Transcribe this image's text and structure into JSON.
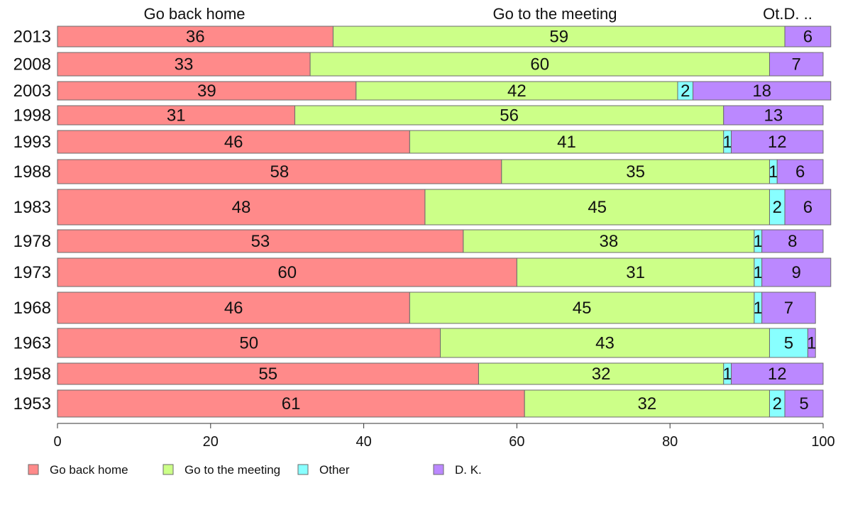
{
  "chart_data": {
    "type": "bar",
    "orientation": "horizontal",
    "stacked": true,
    "header_labels": [
      "Go back home",
      "Go to the meeting",
      "Ot.D. .."
    ],
    "categories": [
      "2013",
      "2008",
      "2003",
      "1998",
      "1993",
      "1988",
      "1983",
      "1978",
      "1973",
      "1968",
      "1963",
      "1958",
      "1953"
    ],
    "series": [
      {
        "name": "Go back home",
        "color": "#FF8A8A",
        "values": [
          36,
          33,
          39,
          31,
          46,
          58,
          48,
          53,
          60,
          46,
          50,
          55,
          61
        ],
        "labels": [
          "36",
          "33",
          "39",
          "31",
          "46",
          "58",
          "48",
          "53",
          "60",
          "46",
          "50",
          "55",
          "61"
        ]
      },
      {
        "name": "Go to the meeting",
        "color": "#CCFF88",
        "values": [
          59,
          60,
          42,
          56,
          41,
          35,
          45,
          38,
          31,
          45,
          43,
          32,
          32
        ],
        "labels": [
          "59",
          "60",
          "42",
          "56",
          "41",
          "35",
          "45",
          "38",
          "31",
          "45",
          "43",
          "32",
          "32"
        ]
      },
      {
        "name": "Other",
        "color": "#88FFFF",
        "values": [
          0,
          0,
          2,
          0,
          1,
          1,
          2,
          1,
          1,
          1,
          5,
          1,
          2
        ],
        "labels": [
          "",
          "",
          "2",
          "",
          "1",
          "1",
          "2",
          "1",
          "1",
          "1",
          "5",
          "1",
          "2"
        ]
      },
      {
        "name": "D. K.",
        "color": "#BB88FF",
        "values": [
          6,
          7,
          18,
          13,
          12,
          6,
          6,
          8,
          9,
          7,
          1,
          12,
          5
        ],
        "labels": [
          "6",
          "7",
          "18",
          "13",
          "12",
          "6",
          "6",
          "8",
          "9",
          "7",
          "1",
          "12",
          "5"
        ]
      }
    ],
    "xlim": [
      0,
      100
    ],
    "xticks": [
      0,
      20,
      40,
      60,
      80,
      100
    ],
    "xtick_labels": [
      "0",
      "20",
      "40",
      "60",
      "80",
      "100"
    ],
    "legend_position": "bottom-left",
    "grid": false,
    "title": "",
    "xlabel": "",
    "ylabel": ""
  }
}
